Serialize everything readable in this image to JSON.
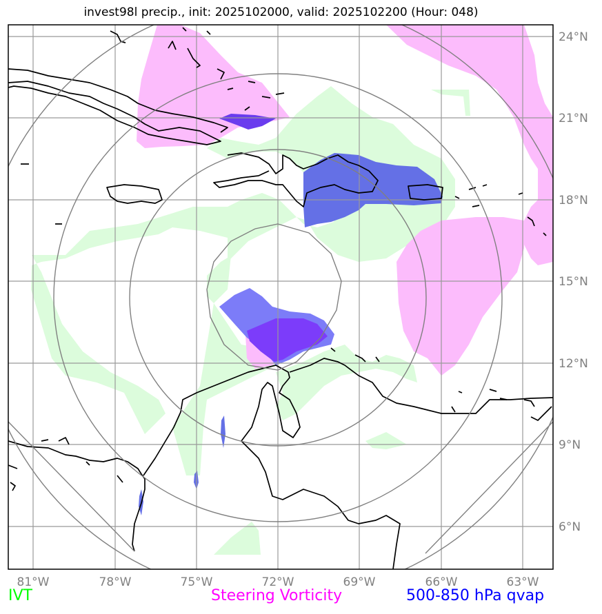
{
  "title": "invest98l precip., init: 2025102000, valid: 2025102200 (Hour: 048)",
  "lon_labels": [
    "81°W",
    "78°W",
    "75°W",
    "72°W",
    "69°W",
    "66°W",
    "63°W"
  ],
  "lat_labels": [
    "24°N",
    "21°N",
    "18°N",
    "15°N",
    "12°N",
    "9°N",
    "6°N"
  ],
  "legend": {
    "ivt": "IVT",
    "steering": "Steering Vorticity",
    "qvap": "500-850 hPa qvap"
  },
  "colors": {
    "ivt": "#00ff00",
    "steering": "#ff00ff",
    "qvap": "#0000ff",
    "ivt_fill": "#dcfcdc",
    "steering_fill": "#fcbcfc",
    "qvap_fill": "#6470e6",
    "qvap_dark": "#7c3cfa"
  }
}
